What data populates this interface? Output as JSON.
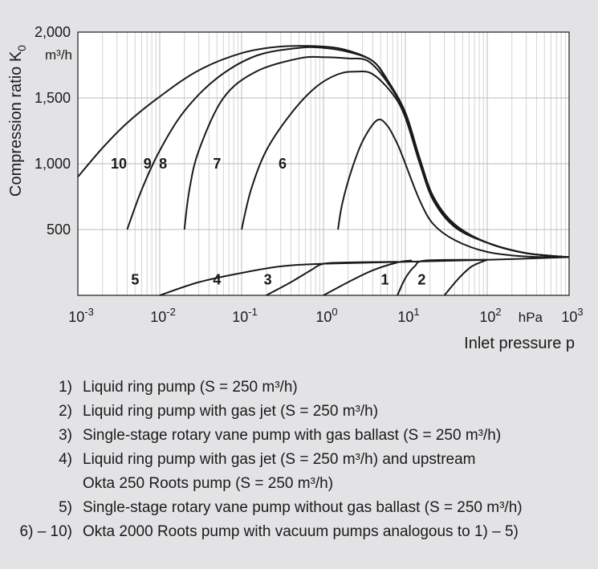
{
  "chart_data": {
    "type": "line",
    "ylabel": "Compression ratio K",
    "ylabel_sub": "0",
    "y_unit": "m³/h",
    "xlabel": "Inlet pressure p",
    "x_unit": "hPa",
    "x_scale": "log",
    "xlim": [
      0.001,
      1000
    ],
    "ylim": [
      0,
      2000
    ],
    "x_ticks": [
      {
        "base": "10",
        "exp": "-3"
      },
      {
        "base": "10",
        "exp": "-2"
      },
      {
        "base": "10",
        "exp": "-1"
      },
      {
        "base": "10",
        "exp": "0"
      },
      {
        "base": "10",
        "exp": "1"
      },
      {
        "base": "10",
        "exp": "2"
      },
      {
        "base": "10",
        "exp": "3"
      }
    ],
    "y_ticks": [
      "2,000",
      "1,500",
      "1,000",
      "500"
    ],
    "y_tick_values": [
      2000,
      1500,
      1000,
      500
    ],
    "grid": true,
    "series": [
      {
        "name": "1",
        "label_at": [
          0.75,
          120
        ],
        "points": [
          [
            30,
            0
          ],
          [
            45,
            130
          ],
          [
            65,
            220
          ],
          [
            100,
            270
          ]
        ]
      },
      {
        "name": "2",
        "label_at": [
          1.2,
          120
        ],
        "points": [
          [
            8,
            0
          ],
          [
            10,
            130
          ],
          [
            13,
            220
          ],
          [
            18,
            265
          ],
          [
            100,
            270
          ]
        ]
      },
      {
        "name": "3",
        "label_at": [
          -0.68,
          120
        ],
        "points": [
          [
            1,
            0
          ],
          [
            2,
            100
          ],
          [
            4,
            190
          ],
          [
            8,
            250
          ],
          [
            12,
            265
          ]
        ]
      },
      {
        "name": "4",
        "label_at": [
          -1.3,
          120
        ],
        "points": [
          [
            0.2,
            0
          ],
          [
            0.4,
            100
          ],
          [
            0.7,
            190
          ],
          [
            1,
            240
          ],
          [
            2,
            250
          ],
          [
            8,
            255
          ]
        ]
      },
      {
        "name": "5",
        "label_at": [
          -2.3,
          120
        ],
        "points": [
          [
            0.01,
            0
          ],
          [
            0.03,
            100
          ],
          [
            0.1,
            170
          ],
          [
            0.3,
            220
          ],
          [
            1,
            240
          ],
          [
            10,
            255
          ],
          [
            100,
            270
          ],
          [
            1000,
            290
          ]
        ]
      },
      {
        "name": "6",
        "label_at": [
          -0.5,
          1000
        ],
        "points": [
          [
            1.5,
            500
          ],
          [
            1.7,
            700
          ],
          [
            2.2,
            950
          ],
          [
            3,
            1170
          ],
          [
            4.5,
            1330
          ],
          [
            6,
            1290
          ],
          [
            8,
            1150
          ],
          [
            10,
            1000
          ],
          [
            15,
            720
          ],
          [
            22,
            540
          ],
          [
            40,
            420
          ],
          [
            100,
            330
          ],
          [
            300,
            295
          ],
          [
            1000,
            290
          ]
        ]
      },
      {
        "name": "7",
        "label_at": [
          -1.3,
          1000
        ],
        "points": [
          [
            0.1,
            500
          ],
          [
            0.13,
            800
          ],
          [
            0.2,
            1100
          ],
          [
            0.4,
            1380
          ],
          [
            0.8,
            1580
          ],
          [
            1.5,
            1680
          ],
          [
            2.5,
            1700
          ],
          [
            4,
            1680
          ],
          [
            7,
            1530
          ],
          [
            10,
            1350
          ],
          [
            15,
            1000
          ],
          [
            22,
            720
          ],
          [
            40,
            520
          ],
          [
            100,
            400
          ],
          [
            300,
            320
          ],
          [
            1000,
            290
          ]
        ]
      },
      {
        "name": "8",
        "label_at": [
          -1.96,
          1000
        ],
        "points": [
          [
            0.02,
            500
          ],
          [
            0.023,
            800
          ],
          [
            0.03,
            1100
          ],
          [
            0.06,
            1500
          ],
          [
            0.15,
            1700
          ],
          [
            0.5,
            1800
          ],
          [
            1,
            1810
          ],
          [
            2,
            1800
          ],
          [
            3.5,
            1780
          ],
          [
            6,
            1620
          ],
          [
            10,
            1380
          ],
          [
            15,
            1020
          ],
          [
            22,
            730
          ],
          [
            40,
            520
          ],
          [
            100,
            400
          ],
          [
            300,
            320
          ],
          [
            1000,
            290
          ]
        ]
      },
      {
        "name": "9",
        "label_at": [
          -2.15,
          1000
        ],
        "points": [
          [
            0.004,
            500
          ],
          [
            0.006,
            800
          ],
          [
            0.01,
            1100
          ],
          [
            0.02,
            1400
          ],
          [
            0.05,
            1650
          ],
          [
            0.15,
            1820
          ],
          [
            0.5,
            1880
          ],
          [
            1,
            1880
          ],
          [
            2,
            1850
          ],
          [
            4,
            1780
          ],
          [
            6,
            1630
          ],
          [
            10,
            1380
          ],
          [
            15,
            1030
          ],
          [
            22,
            740
          ],
          [
            40,
            530
          ],
          [
            100,
            400
          ],
          [
            300,
            320
          ],
          [
            1000,
            290
          ]
        ]
      },
      {
        "name": "10",
        "label_at": [
          -2.5,
          1000
        ],
        "points": [
          [
            0.001,
            900
          ],
          [
            0.002,
            1120
          ],
          [
            0.004,
            1310
          ],
          [
            0.01,
            1510
          ],
          [
            0.03,
            1710
          ],
          [
            0.1,
            1840
          ],
          [
            0.3,
            1890
          ],
          [
            1,
            1890
          ],
          [
            2,
            1860
          ],
          [
            4,
            1780
          ],
          [
            6,
            1640
          ],
          [
            10,
            1390
          ],
          [
            15,
            1040
          ],
          [
            22,
            750
          ],
          [
            40,
            540
          ],
          [
            100,
            400
          ],
          [
            300,
            320
          ],
          [
            1000,
            290
          ]
        ]
      }
    ]
  },
  "legend": [
    {
      "num": "1)",
      "text": "Liquid ring pump (S = 250 m³/h)"
    },
    {
      "num": "2)",
      "text": "Liquid ring pump with gas jet (S = 250 m³/h)"
    },
    {
      "num": "3)",
      "text": "Single-stage rotary vane pump with gas ballast (S = 250 m³/h)"
    },
    {
      "num": "4)",
      "text": "Liquid ring pump with gas jet (S = 250 m³/h) and upstream"
    },
    {
      "num": "",
      "text": "Okta 250 Roots pump (S = 250 m³/h)"
    },
    {
      "num": "5)",
      "text": "Single-stage rotary vane pump without gas ballast (S = 250 m³/h)"
    },
    {
      "num": "6) – 10)",
      "text": "Okta 2000 Roots pump with vacuum pumps analogous to 1) – 5)"
    }
  ]
}
